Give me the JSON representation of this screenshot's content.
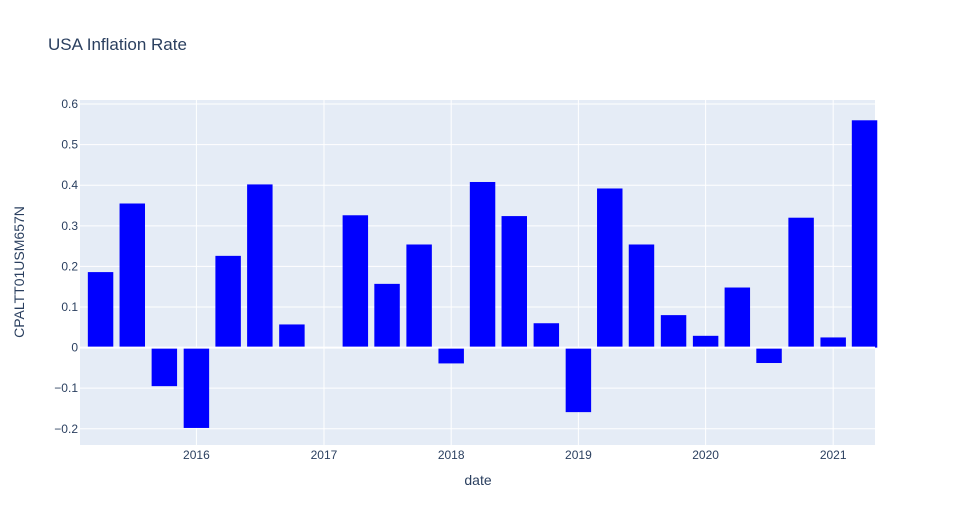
{
  "chart_data": {
    "type": "bar",
    "title": "USA Inflation Rate",
    "xlabel": "date",
    "ylabel": "CPALTT01USM657N",
    "ylim": [
      -0.24,
      0.61
    ],
    "yticks": [
      -0.2,
      -0.1,
      0,
      0.1,
      0.2,
      0.3,
      0.4,
      0.5,
      0.6
    ],
    "ytick_labels": [
      "−0.2",
      "−0.1",
      "0",
      "0.1",
      "0.2",
      "0.3",
      "0.4",
      "0.5",
      "0.6"
    ],
    "xlim": [
      "2015-02-01",
      "2021-05-01"
    ],
    "xticks": [
      "2016-01-01",
      "2017-01-01",
      "2018-01-01",
      "2019-01-01",
      "2020-01-01",
      "2021-01-01"
    ],
    "xtick_labels": [
      "2016",
      "2017",
      "2018",
      "2019",
      "2020",
      "2021"
    ],
    "x": [
      "2015-04-01",
      "2015-07-01",
      "2015-10-01",
      "2016-01-01",
      "2016-04-01",
      "2016-07-01",
      "2016-10-01",
      "2017-01-01",
      "2017-04-01",
      "2017-07-01",
      "2017-10-01",
      "2018-01-01",
      "2018-04-01",
      "2018-07-01",
      "2018-10-01",
      "2019-01-01",
      "2019-04-01",
      "2019-07-01",
      "2019-10-01",
      "2020-01-01",
      "2020-04-01",
      "2020-07-01",
      "2020-10-01",
      "2021-01-01",
      "2021-04-01"
    ],
    "values": [
      0.186,
      0.355,
      -0.095,
      -0.198,
      0.226,
      0.402,
      0.057,
      0.0,
      0.326,
      0.157,
      0.254,
      -0.039,
      0.408,
      0.324,
      0.06,
      -0.159,
      0.392,
      0.254,
      0.08,
      0.029,
      0.148,
      -0.038,
      0.32,
      0.025,
      0.56
    ],
    "bar_color": "#0000ff",
    "plot_bg": "#e5ecf6",
    "grid": true,
    "legend": false
  }
}
